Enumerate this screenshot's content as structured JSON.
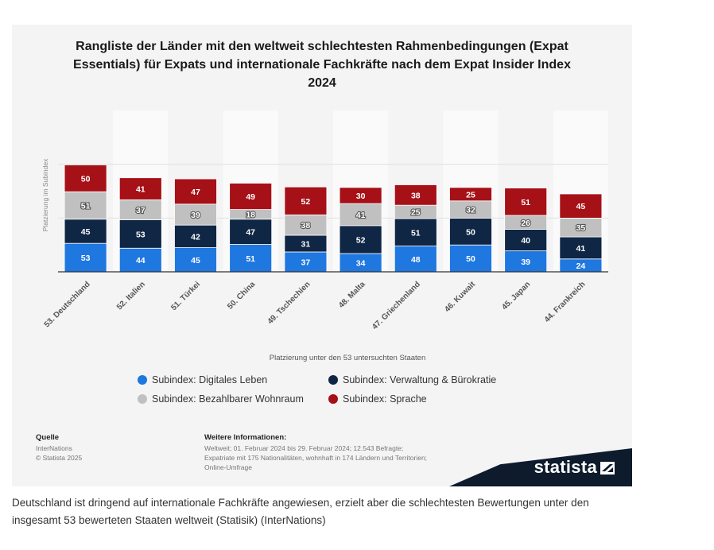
{
  "chart_data": {
    "type": "bar",
    "stacked": true,
    "title": "Rangliste der Länder mit den weltweit schlechtesten Rahmenbedingungen (Expat Essentials) für Expats und internationale Fachkräfte nach dem Expat Insider Index 2024",
    "xlabel": "Platzierung unter den 53 untersuchten Staaten",
    "ylabel": "Platzierung im Subindex",
    "categories": [
      "53. Deutschland",
      "52. Italien",
      "51. Türkei",
      "50. China",
      "49. Tschechien",
      "48. Malta",
      "47. Griechenland",
      "46. Kuwait",
      "45. Japan",
      "44. Frankreich"
    ],
    "series": [
      {
        "name": "Subindex: Digitales Leben",
        "color": "#1f77e0",
        "values": [
          53,
          44,
          45,
          51,
          37,
          34,
          48,
          50,
          39,
          24
        ]
      },
      {
        "name": "Subindex: Verwaltung & Bürokratie",
        "color": "#0f2645",
        "values": [
          45,
          53,
          42,
          47,
          31,
          52,
          51,
          50,
          40,
          41
        ]
      },
      {
        "name": "Subindex: Bezahlbarer Wohnraum",
        "color": "#c0c0c0",
        "values": [
          51,
          37,
          39,
          18,
          38,
          41,
          25,
          32,
          26,
          35
        ]
      },
      {
        "name": "Subindex: Sprache",
        "color": "#a61017",
        "values": [
          50,
          41,
          47,
          49,
          52,
          30,
          38,
          25,
          51,
          45
        ]
      }
    ],
    "ylim": [
      0,
      250
    ],
    "grid": true,
    "legend": "bottom"
  },
  "footer": {
    "source_title": "Quelle",
    "source_name": "InterNations",
    "copyright": "© Statista 2025",
    "info_title": "Weitere Informationen:",
    "info_lines": [
      "Weltweit; 01. Februar 2024 bis 29. Februar 2024; 12.543 Befragte;",
      "Expatriate mit 175 Nationalitäten, wohnhaft in 174 Ländern und Territorien;",
      "Online-Umfrage"
    ],
    "brand": "statista"
  },
  "caption": "Deutschland ist dringend auf internationale Fachkräfte angewiesen, erzielt aber die schlechtesten Bewertungen unter den insgesamt 53 bewerteten Staaten weltweit (Statisik) (InterNations)"
}
